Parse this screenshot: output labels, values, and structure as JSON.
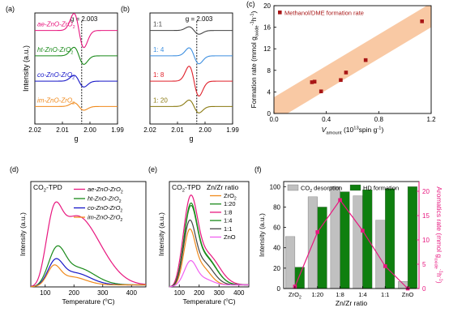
{
  "colors": {
    "axis": "#000000",
    "pink": "#e8177f",
    "green": "#1a8a1a",
    "blue": "#1616c8",
    "orange": "#f08a1c",
    "gray": "#444444",
    "lightblue": "#3d8fe0",
    "red": "#e0202a",
    "olive": "#8a7a10",
    "magenta": "#f060f0",
    "band": "#f9c9a4",
    "marker": "#a81616",
    "bar_gray": "#c0c0c0",
    "bar_green": "#0f7f0f"
  },
  "chart_data": [
    {
      "id": "a",
      "panel_label": "(a)",
      "type": "line",
      "xlabel": "g",
      "ylabel": "Intensity (a.u.)",
      "xlim": [
        2.02,
        1.99
      ],
      "xticks": [
        {
          "v": 2.02,
          "t": "2.02"
        },
        {
          "v": 2.01,
          "t": "2.01"
        },
        {
          "v": 2.0,
          "t": "2.00"
        },
        {
          "v": 1.99,
          "t": "1.99"
        }
      ],
      "ref_line": {
        "x": 2.003,
        "label": "g = 2.003"
      },
      "series": [
        {
          "name": "ae-ZnO-ZrO",
          "sub": "2",
          "color_key": "pink",
          "offset": 4,
          "amp": 1.6
        },
        {
          "name": "ht-ZnO-ZrO",
          "sub": "2",
          "color_key": "green",
          "offset": 3,
          "amp": 0.8
        },
        {
          "name": "co-ZnO-ZrO",
          "sub": "2",
          "color_key": "blue",
          "offset": 2,
          "amp": 0.55
        },
        {
          "name": "im-ZnO-ZrO",
          "sub": "2",
          "color_key": "orange",
          "offset": 1,
          "amp": 0.35
        }
      ]
    },
    {
      "id": "b",
      "panel_label": "(b)",
      "type": "line",
      "xlabel": "g",
      "ylabel": "",
      "xlim": [
        2.02,
        1.99
      ],
      "xticks": [
        {
          "v": 2.02,
          "t": "2.02"
        },
        {
          "v": 2.01,
          "t": "2.01"
        },
        {
          "v": 2.0,
          "t": "2.00"
        },
        {
          "v": 1.99,
          "t": "1.99"
        }
      ],
      "ref_line": {
        "x": 2.003,
        "label": "g = 2.003"
      },
      "series": [
        {
          "name": "1:1",
          "color_key": "gray",
          "offset": 4,
          "amp": 0.35
        },
        {
          "name": "1: 4",
          "color_key": "lightblue",
          "offset": 3,
          "amp": 0.75
        },
        {
          "name": "1: 8",
          "color_key": "red",
          "offset": 2,
          "amp": 1.4
        },
        {
          "name": "1: 20",
          "color_key": "olive",
          "offset": 1,
          "amp": 0.6
        }
      ]
    },
    {
      "id": "c",
      "panel_label": "(c)",
      "type": "scatter",
      "legend_text": "Methanol/DME formation rate",
      "xlabel_prefix": "V",
      "xlabel_sub": "amount",
      "xlabel_rest": " (10",
      "xlabel_sup": "13",
      "xlabel_end": "spin g",
      "xlabel_sup2": "-1",
      "xlabel_close": ")",
      "ylabel_main": "Formation rate (mmol g",
      "ylabel_sub": "oxide",
      "ylabel_sup": "-1",
      "ylabel_end": "h",
      "ylabel_sup2": "-1",
      "ylabel_close": ")",
      "xlim": [
        0.0,
        1.2
      ],
      "ylim": [
        0,
        20
      ],
      "xticks": [
        {
          "v": 0.0,
          "t": "0.0"
        },
        {
          "v": 0.4,
          "t": "0.4"
        },
        {
          "v": 0.8,
          "t": "0.8"
        },
        {
          "v": 1.2,
          "t": "1.2"
        }
      ],
      "yticks": [
        {
          "v": 0,
          "t": "0"
        },
        {
          "v": 4,
          "t": "4"
        },
        {
          "v": 8,
          "t": "8"
        },
        {
          "v": 12,
          "t": "12"
        },
        {
          "v": 16,
          "t": "16"
        },
        {
          "v": 20,
          "t": "20"
        }
      ],
      "points": [
        [
          0.29,
          5.8
        ],
        [
          0.31,
          5.9
        ],
        [
          0.36,
          4.1
        ],
        [
          0.51,
          6.2
        ],
        [
          0.55,
          7.6
        ],
        [
          0.7,
          9.9
        ],
        [
          1.13,
          17.1
        ]
      ],
      "band": {
        "x": [
          0.0,
          1.2
        ],
        "lower": [
          -1.5,
          16.0
        ],
        "upper": [
          3.0,
          20.5
        ]
      }
    },
    {
      "id": "d",
      "panel_label": "(d)",
      "type": "line",
      "inset_title": "CO",
      "inset_title_sub": "2",
      "inset_title_rest": "-TPD",
      "xlabel": "Temperature (",
      "xlabel_deg": "o",
      "xlabel_end": "C)",
      "ylabel": "Intensity (a.u.)",
      "xlim": [
        50,
        450
      ],
      "ylim": [
        0,
        1.05
      ],
      "xticks": [
        {
          "v": 100,
          "t": "100"
        },
        {
          "v": 200,
          "t": "200"
        },
        {
          "v": 300,
          "t": "300"
        },
        {
          "v": 400,
          "t": "400"
        }
      ],
      "series": [
        {
          "name": "ae-ZnO-ZrO",
          "sub": "2",
          "color_key": "pink",
          "comps": [
            [
              130,
              0.45,
              25
            ],
            [
              200,
              0.62,
              65
            ],
            [
              290,
              0.18,
              60
            ]
          ]
        },
        {
          "name": "ht-ZnO-ZrO",
          "sub": "2",
          "color_key": "green",
          "comps": [
            [
              140,
              0.3,
              28
            ],
            [
              210,
              0.17,
              60
            ]
          ]
        },
        {
          "name": "co-ZnO-ZrO",
          "sub": "2",
          "color_key": "blue",
          "comps": [
            [
              135,
              0.2,
              25
            ],
            [
              200,
              0.12,
              55
            ]
          ]
        },
        {
          "name": "im-ZnO-ZrO",
          "sub": "2",
          "color_key": "orange",
          "comps": [
            [
              130,
              0.16,
              22
            ],
            [
              190,
              0.08,
              50
            ]
          ]
        }
      ]
    },
    {
      "id": "e",
      "panel_label": "(e)",
      "type": "line",
      "inset_title": "CO",
      "inset_title_sub": "2",
      "inset_title_rest": "-TPD",
      "legend_title": "Zn/Zr ratio",
      "xlabel": "Temperature (",
      "xlabel_deg": "o",
      "xlabel_end": "C)",
      "ylabel": "Intensity (a.u.)",
      "xlim": [
        50,
        450
      ],
      "ylim": [
        0,
        1.05
      ],
      "xticks": [
        {
          "v": 100,
          "t": "100"
        },
        {
          "v": 200,
          "t": "200"
        },
        {
          "v": 300,
          "t": "300"
        },
        {
          "v": 400,
          "t": "400"
        }
      ],
      "series": [
        {
          "name": "ZrO",
          "sub": "2",
          "color_key": "orange",
          "comps": [
            [
              150,
              0.48,
              28
            ],
            [
              210,
              0.18,
              45
            ]
          ]
        },
        {
          "name": "1:20",
          "color_key": "green",
          "comps": [
            [
              155,
              0.7,
              32
            ],
            [
              230,
              0.28,
              55
            ]
          ]
        },
        {
          "name": "1:8",
          "color_key": "pink",
          "comps": [
            [
              155,
              0.78,
              35
            ],
            [
              240,
              0.3,
              60
            ]
          ]
        },
        {
          "name": "1:4",
          "color_key": "green",
          "comps": [
            [
              155,
              0.68,
              32
            ],
            [
              230,
              0.27,
              55
            ]
          ]
        },
        {
          "name": "1:1",
          "color_key": "gray",
          "comps": [
            [
              150,
              0.56,
              30
            ],
            [
              220,
              0.22,
              50
            ]
          ]
        },
        {
          "name": "ZnO",
          "color_key": "magenta",
          "comps": [
            [
              155,
              0.22,
              30
            ],
            [
              220,
              0.06,
              45
            ]
          ]
        }
      ]
    },
    {
      "id": "f",
      "panel_label": "(f)",
      "type": "bar",
      "categories": [
        "ZrO",
        "1:20",
        "1:8",
        "1:4",
        "1:1",
        "ZnO"
      ],
      "category_subs": [
        "2",
        "",
        "",
        "",
        "",
        ""
      ],
      "xlabel": "Zn/Zr ratio",
      "ylabel": "Intensity (a.u.)",
      "ylim": [
        0,
        105
      ],
      "yticks": [
        {
          "v": 0,
          "t": "0"
        },
        {
          "v": 20,
          "t": "20"
        },
        {
          "v": 40,
          "t": "40"
        },
        {
          "v": 60,
          "t": "60"
        },
        {
          "v": 80,
          "t": "80"
        },
        {
          "v": 100,
          "t": "100"
        }
      ],
      "y2label_main": "Aromatics rate (mmol g",
      "y2label_sub": "oxide",
      "y2label_sup": "-1",
      "y2label_end": "h",
      "y2label_sup2": "-1",
      "y2label_close": ")",
      "y2lim": [
        0,
        22
      ],
      "y2ticks": [
        {
          "v": 0,
          "t": "0"
        },
        {
          "v": 5,
          "t": "5"
        },
        {
          "v": 10,
          "t": "10"
        },
        {
          "v": 15,
          "t": "15"
        },
        {
          "v": 20,
          "t": "20"
        }
      ],
      "series": [
        {
          "name": "CO",
          "sub": "2",
          "rest": " desorption",
          "color_key": "bar_gray",
          "values": [
            51,
            90,
            100,
            91,
            67,
            7
          ]
        },
        {
          "name": "HD formation",
          "color_key": "bar_green",
          "values": [
            21,
            80,
            95,
            97,
            98,
            100
          ]
        }
      ],
      "line_series": {
        "color_key": "pink",
        "values": [
          0.4,
          11.6,
          18.2,
          11.9,
          4.6,
          0.0
        ]
      }
    }
  ]
}
